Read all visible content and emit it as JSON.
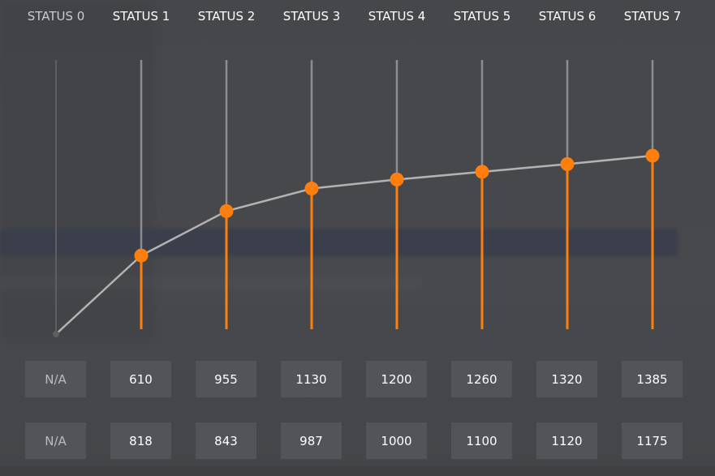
{
  "statuses": [
    {
      "label": "STATUS 0",
      "row1": "N/A",
      "row2": "N/A",
      "level": null
    },
    {
      "label": "STATUS 1",
      "row1": "610",
      "row2": "818",
      "level": 610
    },
    {
      "label": "STATUS 2",
      "row1": "955",
      "row2": "843",
      "level": 955
    },
    {
      "label": "STATUS 3",
      "row1": "1130",
      "row2": "987",
      "level": 1130
    },
    {
      "label": "STATUS 4",
      "row1": "1200",
      "row2": "1000",
      "level": 1200
    },
    {
      "label": "STATUS 5",
      "row1": "1260",
      "row2": "1100",
      "level": 1260
    },
    {
      "label": "STATUS 6",
      "row1": "1320",
      "row2": "1120",
      "level": 1320
    },
    {
      "label": "STATUS 7",
      "row1": "1385",
      "row2": "1175",
      "level": 1385
    }
  ],
  "chart_data": {
    "type": "line",
    "categories": [
      "STATUS 0",
      "STATUS 1",
      "STATUS 2",
      "STATUS 3",
      "STATUS 4",
      "STATUS 5",
      "STATUS 6",
      "STATUS 7"
    ],
    "values": [
      0,
      610,
      955,
      1130,
      1200,
      1260,
      1320,
      1385
    ],
    "ylim": [
      0,
      1700
    ],
    "title": "",
    "xlabel": "",
    "ylabel": "",
    "grid": false
  },
  "colors": {
    "accent": "#ff7f0e",
    "line": "#b3b3b3",
    "stem": "#8b8d90",
    "cell_bg": "#535459"
  }
}
